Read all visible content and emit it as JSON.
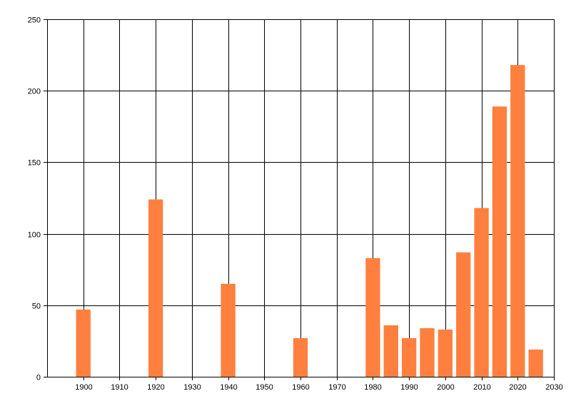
{
  "chart_data": {
    "type": "bar",
    "title": "",
    "xlabel": "",
    "ylabel": "",
    "xlim": [
      1890,
      2030
    ],
    "ylim": [
      0,
      250
    ],
    "x_ticks": [
      1900,
      1910,
      1920,
      1930,
      1940,
      1950,
      1960,
      1970,
      1980,
      1990,
      2000,
      2010,
      2020,
      2030
    ],
    "y_ticks": [
      0,
      50,
      100,
      150,
      200,
      250
    ],
    "grid": true,
    "bar_color": "#FF7F3F",
    "series": [
      {
        "x": [
          1900,
          1920,
          1940,
          1960,
          1980,
          1985,
          1990,
          1995,
          2000,
          2005,
          2010,
          2015,
          2020,
          2025
        ],
        "values": [
          47,
          124,
          65,
          27,
          83,
          36,
          27,
          34,
          33,
          87,
          118,
          189,
          218,
          19
        ]
      }
    ]
  }
}
